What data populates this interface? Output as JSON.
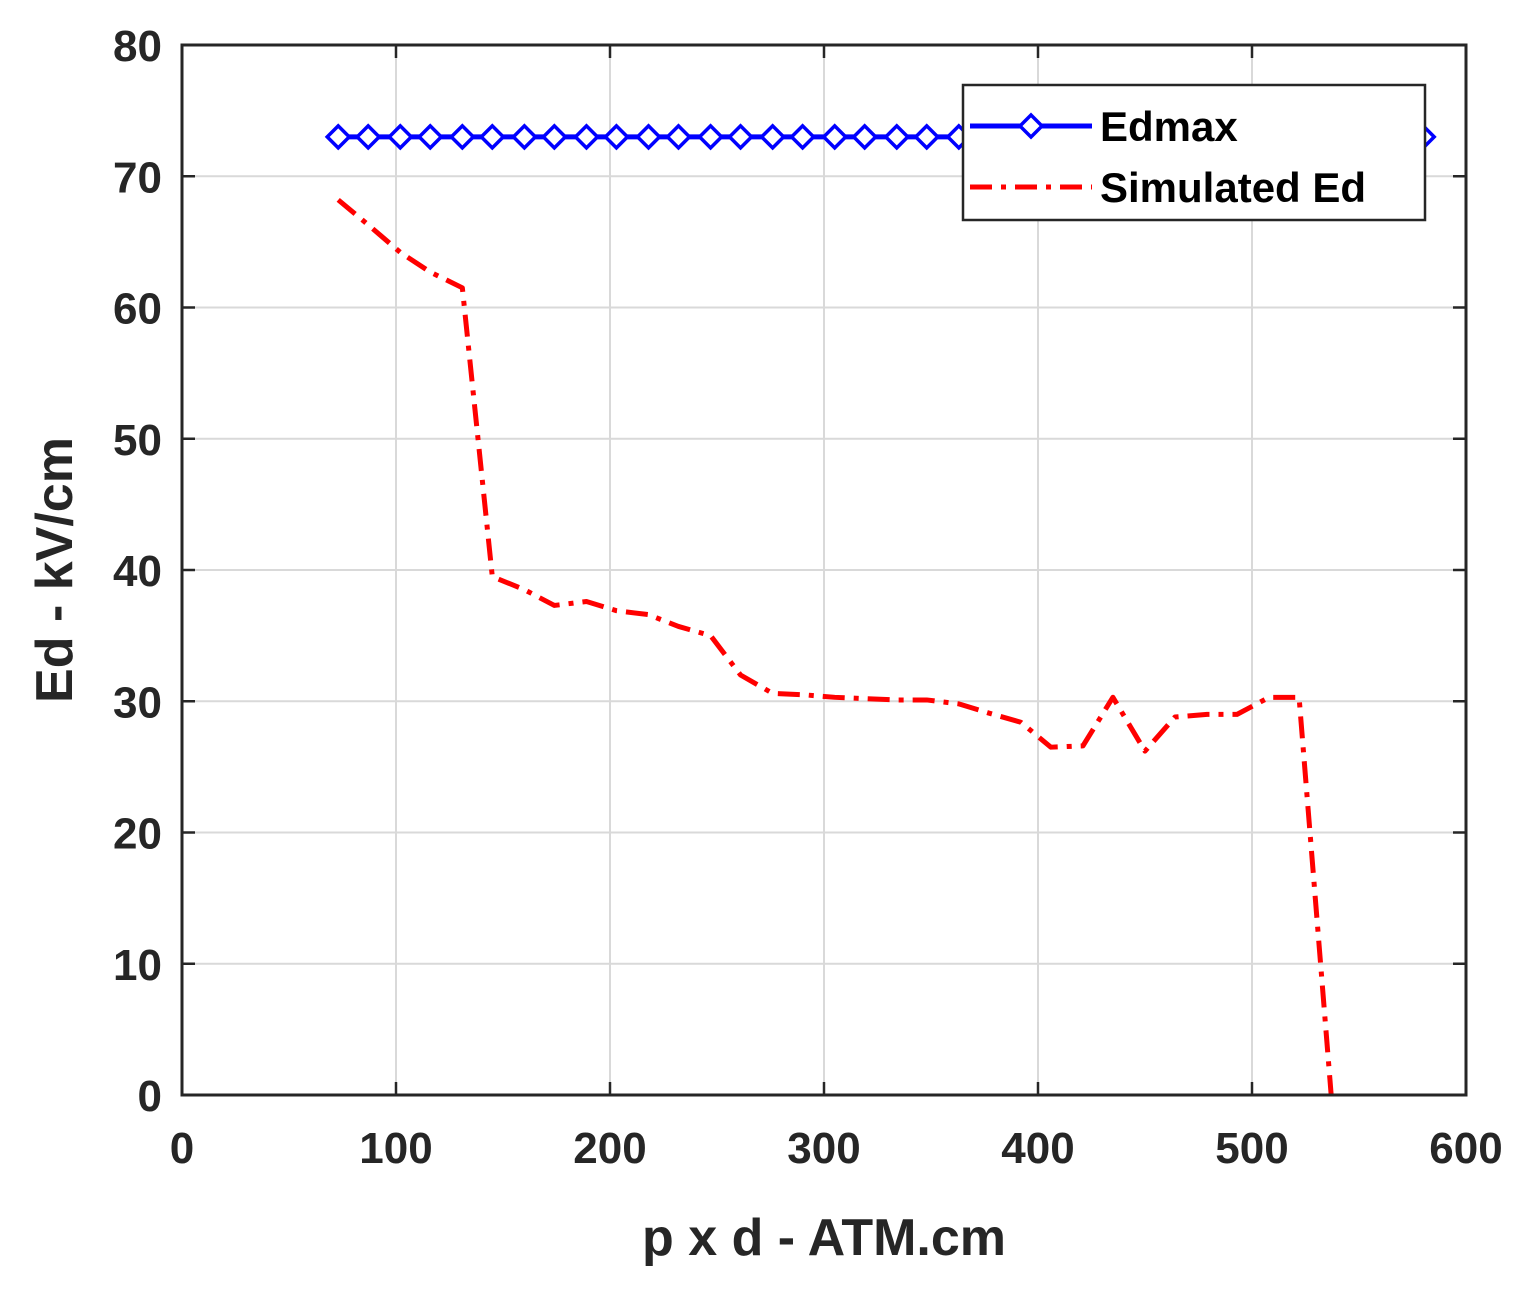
{
  "chart_data": {
    "type": "line",
    "xlabel": "p x d - ATM.cm",
    "ylabel": "Ed - kV/cm",
    "xlim": [
      0,
      600
    ],
    "ylim": [
      0,
      80
    ],
    "xticks": [
      0,
      100,
      200,
      300,
      400,
      500,
      600
    ],
    "yticks": [
      0,
      10,
      20,
      30,
      40,
      50,
      60,
      70,
      80
    ],
    "grid": true,
    "legend_position": "top-right",
    "series": [
      {
        "name": "Edmax",
        "color": "#0000FF",
        "line_style": "solid",
        "marker": "diamond",
        "x": [
          73,
          87,
          102,
          116,
          131,
          145,
          160,
          174,
          189,
          203,
          218,
          232,
          247,
          261,
          276,
          290,
          305,
          319,
          334,
          348,
          363,
          377,
          392,
          406,
          421,
          435,
          450,
          464,
          479,
          493,
          508,
          522,
          537,
          551,
          566,
          580
        ],
        "y": [
          73,
          73,
          73,
          73,
          73,
          73,
          73,
          73,
          73,
          73,
          73,
          73,
          73,
          73,
          73,
          73,
          73,
          73,
          73,
          73,
          73,
          73,
          73,
          73,
          73,
          73,
          73,
          73,
          73,
          73,
          73,
          73,
          73,
          73,
          73,
          73
        ]
      },
      {
        "name": "Simulated Ed",
        "color": "#FF0000",
        "line_style": "dash-dot",
        "marker": "none",
        "x": [
          73,
          87,
          102,
          116,
          131,
          145,
          160,
          174,
          189,
          203,
          218,
          232,
          247,
          261,
          276,
          290,
          305,
          319,
          334,
          348,
          363,
          377,
          392,
          406,
          421,
          435,
          450,
          464,
          479,
          493,
          508,
          522,
          537
        ],
        "y": [
          68.2,
          66.3,
          64.2,
          62.7,
          61.5,
          39.5,
          38.5,
          37.3,
          37.6,
          36.9,
          36.6,
          35.7,
          35.0,
          32.0,
          30.6,
          30.5,
          30.3,
          30.2,
          30.1,
          30.1,
          29.8,
          29.1,
          28.4,
          26.5,
          26.6,
          30.3,
          26.2,
          28.8,
          29.0,
          29.0,
          30.3,
          30.3,
          0
        ]
      }
    ]
  }
}
